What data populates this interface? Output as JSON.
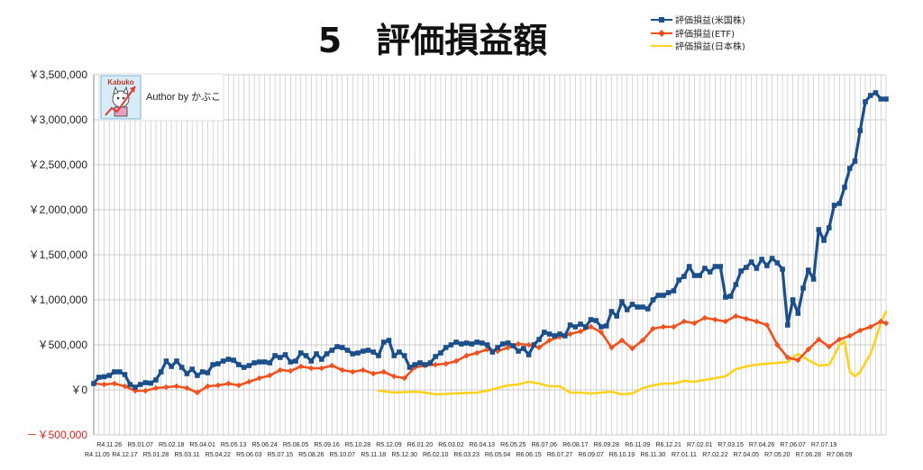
{
  "chart_data": {
    "type": "line",
    "title": "5　評価損益額",
    "ylim": [
      -500000,
      3500000
    ],
    "y_tick_values": [
      -500000,
      0,
      500000,
      1000000,
      1500000,
      2000000,
      2500000,
      3000000,
      3500000
    ],
    "y_tick_labels": [
      "－￥500,000",
      "￥0",
      "￥500,000",
      "￥1,000,000",
      "￥1,500,000",
      "￥2,000,000",
      "￥2,500,000",
      "￥3,000,000",
      "￥3,500,000"
    ],
    "x_ticks_row1": [
      "R4.11.26",
      "R5.01.07",
      "R5.02.18",
      "R5.04.01",
      "R5.05.13",
      "R5.06.24",
      "R5.08.05",
      "R5.09.16",
      "R5.10.28",
      "R5.12.09",
      "R6.01.20",
      "R6.03.02",
      "R6.04.13",
      "R6.05.25",
      "R6.07.06",
      "R6.08.17",
      "R6.09.28",
      "R6.11.09",
      "R6.12.21",
      "R7.02.01",
      "R7.03.15",
      "R7.04.26",
      "R7.06.07",
      "R7.07.19"
    ],
    "x_ticks_row2": [
      "R4.11.05",
      "R4.12.17",
      "R5.01.28",
      "R5.03.11",
      "R5.04.22",
      "R5.06.03",
      "R5.07.15",
      "R5.08.26",
      "R5.10.07",
      "R5.11.18",
      "R5.12.30",
      "R6.02.10",
      "R6.03.23",
      "R6.05.04",
      "R6.06.15",
      "R6.07.27",
      "R6.09.07",
      "R6.10.19",
      "R6.11.30",
      "R7.01.11",
      "R7.02.22",
      "R7.04.05",
      "R7.05.20",
      "R7.06.28",
      "R7.08.09"
    ],
    "grid": true,
    "legend_position": "top-right",
    "series": [
      {
        "name": "評価損益(米国株)",
        "color": "#1a4f8b",
        "marker": "square",
        "values": [
          [
            0,
            70000
          ],
          [
            1,
            140000
          ],
          [
            2,
            145000
          ],
          [
            3,
            160000
          ],
          [
            4,
            200000
          ],
          [
            5,
            200000
          ],
          [
            6,
            170000
          ],
          [
            7,
            60000
          ],
          [
            8,
            30000
          ],
          [
            9,
            60000
          ],
          [
            10,
            80000
          ],
          [
            11,
            75000
          ],
          [
            12,
            110000
          ],
          [
            13,
            200000
          ],
          [
            14,
            320000
          ],
          [
            15,
            260000
          ],
          [
            16,
            320000
          ],
          [
            17,
            250000
          ],
          [
            18,
            180000
          ],
          [
            19,
            230000
          ],
          [
            20,
            160000
          ],
          [
            21,
            200000
          ],
          [
            22,
            190000
          ],
          [
            23,
            280000
          ],
          [
            24,
            290000
          ],
          [
            25,
            320000
          ],
          [
            26,
            340000
          ],
          [
            27,
            330000
          ],
          [
            28,
            280000
          ],
          [
            29,
            250000
          ],
          [
            30,
            270000
          ],
          [
            31,
            300000
          ],
          [
            32,
            310000
          ],
          [
            33,
            310000
          ],
          [
            34,
            300000
          ],
          [
            35,
            380000
          ],
          [
            36,
            360000
          ],
          [
            37,
            390000
          ],
          [
            38,
            310000
          ],
          [
            39,
            320000
          ],
          [
            40,
            410000
          ],
          [
            41,
            380000
          ],
          [
            42,
            320000
          ],
          [
            43,
            400000
          ],
          [
            44,
            340000
          ],
          [
            45,
            400000
          ],
          [
            46,
            440000
          ],
          [
            47,
            480000
          ],
          [
            48,
            470000
          ],
          [
            49,
            440000
          ],
          [
            50,
            400000
          ],
          [
            51,
            410000
          ],
          [
            52,
            430000
          ],
          [
            53,
            440000
          ],
          [
            54,
            420000
          ],
          [
            55,
            380000
          ],
          [
            56,
            530000
          ],
          [
            57,
            550000
          ],
          [
            58,
            380000
          ],
          [
            59,
            420000
          ],
          [
            60,
            380000
          ],
          [
            61,
            250000
          ],
          [
            62,
            280000
          ],
          [
            63,
            300000
          ],
          [
            64,
            280000
          ],
          [
            65,
            300000
          ],
          [
            66,
            370000
          ],
          [
            67,
            410000
          ],
          [
            68,
            470000
          ],
          [
            69,
            500000
          ],
          [
            70,
            530000
          ],
          [
            71,
            510000
          ],
          [
            72,
            520000
          ],
          [
            73,
            510000
          ],
          [
            74,
            530000
          ],
          [
            75,
            520000
          ],
          [
            76,
            500000
          ],
          [
            77,
            420000
          ],
          [
            78,
            470000
          ],
          [
            79,
            510000
          ],
          [
            80,
            520000
          ],
          [
            81,
            490000
          ],
          [
            82,
            430000
          ],
          [
            83,
            460000
          ],
          [
            84,
            390000
          ],
          [
            85,
            500000
          ],
          [
            86,
            560000
          ],
          [
            87,
            640000
          ],
          [
            88,
            620000
          ],
          [
            89,
            600000
          ],
          [
            90,
            620000
          ],
          [
            91,
            600000
          ],
          [
            92,
            720000
          ],
          [
            93,
            700000
          ],
          [
            94,
            730000
          ],
          [
            95,
            700000
          ],
          [
            96,
            780000
          ],
          [
            97,
            770000
          ],
          [
            98,
            700000
          ],
          [
            99,
            710000
          ],
          [
            100,
            870000
          ],
          [
            101,
            820000
          ],
          [
            102,
            980000
          ],
          [
            103,
            890000
          ],
          [
            104,
            950000
          ],
          [
            105,
            920000
          ],
          [
            106,
            920000
          ],
          [
            107,
            900000
          ],
          [
            108,
            1000000
          ],
          [
            109,
            1050000
          ],
          [
            110,
            1050000
          ],
          [
            111,
            1080000
          ],
          [
            112,
            1100000
          ],
          [
            113,
            1220000
          ],
          [
            114,
            1260000
          ],
          [
            115,
            1370000
          ],
          [
            116,
            1270000
          ],
          [
            117,
            1270000
          ],
          [
            118,
            1350000
          ],
          [
            119,
            1310000
          ],
          [
            120,
            1370000
          ],
          [
            121,
            1370000
          ],
          [
            122,
            1030000
          ],
          [
            123,
            1040000
          ],
          [
            124,
            1170000
          ],
          [
            125,
            1320000
          ],
          [
            126,
            1360000
          ],
          [
            127,
            1420000
          ],
          [
            128,
            1350000
          ],
          [
            129,
            1450000
          ],
          [
            130,
            1380000
          ],
          [
            131,
            1460000
          ],
          [
            132,
            1410000
          ],
          [
            133,
            1340000
          ],
          [
            134,
            720000
          ],
          [
            135,
            1000000
          ],
          [
            136,
            850000
          ],
          [
            137,
            1130000
          ],
          [
            138,
            1330000
          ],
          [
            139,
            1230000
          ],
          [
            140,
            1780000
          ],
          [
            141,
            1660000
          ],
          [
            142,
            1800000
          ],
          [
            143,
            2050000
          ],
          [
            144,
            2070000
          ],
          [
            145,
            2250000
          ],
          [
            146,
            2460000
          ],
          [
            147,
            2540000
          ],
          [
            148,
            2880000
          ],
          [
            149,
            3200000
          ],
          [
            150,
            3270000
          ],
          [
            151,
            3300000
          ],
          [
            152,
            3230000
          ],
          [
            153,
            3230000
          ]
        ]
      },
      {
        "name": "評価損益(ETF)",
        "color": "#f2501c",
        "marker": "diamond",
        "values": [
          [
            0,
            70000
          ],
          [
            2,
            60000
          ],
          [
            4,
            70000
          ],
          [
            6,
            40000
          ],
          [
            8,
            -10000
          ],
          [
            10,
            -10000
          ],
          [
            12,
            20000
          ],
          [
            14,
            30000
          ],
          [
            16,
            40000
          ],
          [
            18,
            20000
          ],
          [
            20,
            -30000
          ],
          [
            22,
            40000
          ],
          [
            24,
            50000
          ],
          [
            26,
            70000
          ],
          [
            28,
            50000
          ],
          [
            30,
            90000
          ],
          [
            32,
            130000
          ],
          [
            34,
            160000
          ],
          [
            36,
            220000
          ],
          [
            38,
            210000
          ],
          [
            40,
            260000
          ],
          [
            42,
            240000
          ],
          [
            44,
            240000
          ],
          [
            46,
            270000
          ],
          [
            48,
            220000
          ],
          [
            50,
            200000
          ],
          [
            52,
            220000
          ],
          [
            54,
            180000
          ],
          [
            56,
            200000
          ],
          [
            58,
            150000
          ],
          [
            60,
            130000
          ],
          [
            62,
            250000
          ],
          [
            64,
            270000
          ],
          [
            66,
            280000
          ],
          [
            68,
            290000
          ],
          [
            70,
            320000
          ],
          [
            72,
            380000
          ],
          [
            74,
            410000
          ],
          [
            76,
            450000
          ],
          [
            78,
            430000
          ],
          [
            80,
            470000
          ],
          [
            82,
            510000
          ],
          [
            84,
            500000
          ],
          [
            86,
            470000
          ],
          [
            88,
            550000
          ],
          [
            90,
            590000
          ],
          [
            92,
            620000
          ],
          [
            94,
            650000
          ],
          [
            96,
            700000
          ],
          [
            98,
            640000
          ],
          [
            100,
            470000
          ],
          [
            102,
            550000
          ],
          [
            104,
            460000
          ],
          [
            106,
            550000
          ],
          [
            108,
            680000
          ],
          [
            110,
            700000
          ],
          [
            112,
            700000
          ],
          [
            114,
            760000
          ],
          [
            116,
            740000
          ],
          [
            118,
            800000
          ],
          [
            120,
            780000
          ],
          [
            122,
            760000
          ],
          [
            124,
            820000
          ],
          [
            126,
            790000
          ],
          [
            128,
            760000
          ],
          [
            130,
            720000
          ],
          [
            132,
            500000
          ],
          [
            134,
            360000
          ],
          [
            136,
            330000
          ],
          [
            138,
            450000
          ],
          [
            140,
            560000
          ],
          [
            142,
            480000
          ],
          [
            144,
            560000
          ],
          [
            146,
            600000
          ],
          [
            148,
            660000
          ],
          [
            150,
            700000
          ],
          [
            152,
            760000
          ],
          [
            153,
            740000
          ]
        ]
      },
      {
        "name": "評価損益(日本株)",
        "color": "#ffd21a",
        "marker": "none",
        "values": [
          [
            55,
            -10000
          ],
          [
            58,
            -30000
          ],
          [
            62,
            -20000
          ],
          [
            64,
            -30000
          ],
          [
            66,
            -50000
          ],
          [
            70,
            -40000
          ],
          [
            74,
            -30000
          ],
          [
            76,
            -10000
          ],
          [
            78,
            20000
          ],
          [
            80,
            50000
          ],
          [
            82,
            60000
          ],
          [
            84,
            90000
          ],
          [
            86,
            70000
          ],
          [
            88,
            40000
          ],
          [
            90,
            40000
          ],
          [
            92,
            -30000
          ],
          [
            94,
            -30000
          ],
          [
            96,
            -40000
          ],
          [
            98,
            -30000
          ],
          [
            100,
            -20000
          ],
          [
            102,
            -50000
          ],
          [
            104,
            -40000
          ],
          [
            106,
            20000
          ],
          [
            108,
            50000
          ],
          [
            110,
            70000
          ],
          [
            112,
            70000
          ],
          [
            114,
            100000
          ],
          [
            116,
            90000
          ],
          [
            118,
            110000
          ],
          [
            120,
            130000
          ],
          [
            122,
            150000
          ],
          [
            124,
            230000
          ],
          [
            126,
            260000
          ],
          [
            128,
            280000
          ],
          [
            130,
            290000
          ],
          [
            132,
            300000
          ],
          [
            134,
            310000
          ],
          [
            136,
            400000
          ],
          [
            138,
            330000
          ],
          [
            140,
            270000
          ],
          [
            142,
            280000
          ],
          [
            143,
            380000
          ],
          [
            144,
            500000
          ],
          [
            145,
            540000
          ],
          [
            146,
            200000
          ],
          [
            147,
            150000
          ],
          [
            148,
            200000
          ],
          [
            149,
            300000
          ],
          [
            150,
            400000
          ],
          [
            151,
            560000
          ],
          [
            152,
            750000
          ],
          [
            153,
            870000
          ]
        ]
      }
    ]
  },
  "author_label": "Author by かぶこ",
  "logo_text": "Kabuko",
  "colors": {
    "background": "#ffffff",
    "grid": "#bdbdbd",
    "axis": "#888888"
  }
}
